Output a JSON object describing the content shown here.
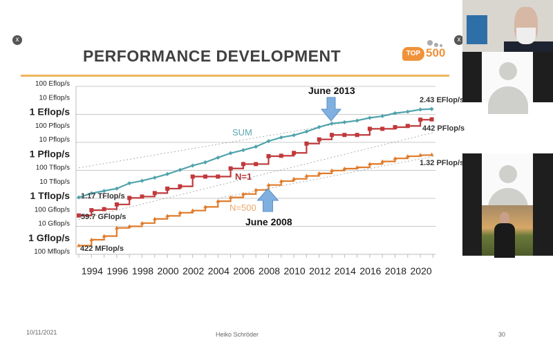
{
  "slide": {
    "title": "PERFORMANCE DEVELOPMENT",
    "logo_text": [
      "TOP",
      "500"
    ],
    "footer_date": "10/11/2021",
    "footer_author": "Heiko Schröder",
    "page_number": "30",
    "close_icon": "x"
  },
  "participants": {
    "tiles": [
      {
        "kind": "video",
        "description_icon": "speaker-video"
      },
      {
        "kind": "avatar",
        "description_icon": "person-placeholder-icon"
      },
      {
        "kind": "avatar",
        "description_icon": "person-placeholder-icon"
      },
      {
        "kind": "video",
        "description_icon": "profile-photo"
      }
    ]
  },
  "chart_data": {
    "type": "line",
    "title": "PERFORMANCE DEVELOPMENT",
    "xlabel": "",
    "ylabel": "",
    "y_scale": "log",
    "ylim": [
      "100 Mflop/s",
      "100 Eflop/s"
    ],
    "ylim_flops": [
      100000000.0,
      1e+20
    ],
    "xlim": [
      1993,
      2021
    ],
    "grid": true,
    "x_tick_labels": [
      "1994",
      "1996",
      "1998",
      "2000",
      "2002",
      "2004",
      "2006",
      "2008",
      "2010",
      "2012",
      "2014",
      "2016",
      "2018",
      "2020"
    ],
    "y_tick_labels": [
      {
        "label": "100 Eflop/s",
        "value": 1e+20,
        "major": false
      },
      {
        "label": "10 Eflop/s",
        "value": 1e+19,
        "major": false
      },
      {
        "label": "1 Eflop/s",
        "value": 1e+18,
        "major": true
      },
      {
        "label": "100 Pflop/s",
        "value": 1e+17,
        "major": false
      },
      {
        "label": "10 Pflop/s",
        "value": 1e+16,
        "major": false
      },
      {
        "label": "1 Pflop/s",
        "value": 1000000000000000.0,
        "major": true
      },
      {
        "label": "100 Tflop/s",
        "value": 100000000000000.0,
        "major": false
      },
      {
        "label": "10 Tflop/s",
        "value": 10000000000000.0,
        "major": false
      },
      {
        "label": "1 Tflop/s",
        "value": 1000000000000.0,
        "major": true
      },
      {
        "label": "100 Gflop/s",
        "value": 100000000000.0,
        "major": false
      },
      {
        "label": "10 Gflop/s",
        "value": 10000000000.0,
        "major": false
      },
      {
        "label": "1 Gflop/s",
        "value": 1000000000.0,
        "major": true
      },
      {
        "label": "100 Mflop/s",
        "value": 100000000.0,
        "major": false
      }
    ],
    "series": [
      {
        "name": "SUM",
        "color": "#4fa3ac",
        "marker": "diamond",
        "x": [
          1993,
          1994,
          1995,
          1996,
          1997,
          1998,
          1999,
          2000,
          2001,
          2002,
          2003,
          2004,
          2005,
          2006,
          2007,
          2008,
          2009,
          2010,
          2011,
          2012,
          2013,
          2014,
          2015,
          2016,
          2017,
          2018,
          2019,
          2020,
          2020.9
        ],
        "y": [
          1170000000000.0,
          2300000000000.0,
          3400000000000.0,
          5000000000000.0,
          12000000000000.0,
          18000000000000.0,
          30000000000000.0,
          54000000000000.0,
          108000000000000.0,
          220000000000000.0,
          375000000000000.0,
          813000000000000.0,
          1690000000000000.0,
          2790000000000000.0,
          4920000000000000.0,
          1.22e+16,
          2.26e+16,
          3.24e+16,
          5.89e+16,
          1.23e+17,
          2.23e+17,
          2.74e+17,
          3.61e+17,
          5.67e+17,
          7.49e+17,
          1.22e+18,
          1.56e+18,
          2.22e+18,
          2.43e+18
        ]
      },
      {
        "name": "N=1",
        "color": "#c0393b",
        "marker": "square",
        "x": [
          1993,
          1994,
          1995,
          1996,
          1997,
          1998,
          1999,
          2000,
          2001,
          2002,
          2003,
          2004,
          2005,
          2006,
          2007,
          2008,
          2009,
          2010,
          2011,
          2012,
          2013,
          2014,
          2015,
          2016,
          2017,
          2018,
          2019,
          2020,
          2020.9
        ],
        "y": [
          59700000000.0,
          143000000000.0,
          170000000000.0,
          368000000000.0,
          1070000000000.0,
          1340000000000.0,
          2380000000000.0,
          4940000000000.0,
          7230000000000.0,
          35900000000000.0,
          35900000000000.0,
          35900000000000.0,
          137000000000000.0,
          281000000000000.0,
          281000000000000.0,
          1030000000000000.0,
          1100000000000000.0,
          1760000000000000.0,
          8160000000000000.0,
          1.63e+16,
          3.39e+16,
          3.39e+16,
          3.39e+16,
          9.3e+16,
          9.3e+16,
          1.22e+17,
          1.49e+17,
          4.16e+17,
          4.42e+17
        ]
      },
      {
        "name": "N=500",
        "color": "#e07b2a",
        "marker": "triangle",
        "x": [
          1993,
          1994,
          1995,
          1996,
          1997,
          1998,
          1999,
          2000,
          2001,
          2002,
          2003,
          2004,
          2005,
          2006,
          2007,
          2008,
          2009,
          2010,
          2011,
          2012,
          2013,
          2014,
          2015,
          2016,
          2017,
          2018,
          2019,
          2020,
          2020.9
        ],
        "y": [
          422000000.0,
          1100000000.0,
          2000000000.0,
          7700000000.0,
          10000000000.0,
          17000000000.0,
          34000000000.0,
          56000000000.0,
          94000000000.0,
          134000000000.0,
          245000000000.0,
          624000000000.0,
          1170000000000.0,
          2030000000000.0,
          4000000000000.0,
          9000000000000.0,
          17000000000000.0,
          24700000000000.0,
          40000000000000.0,
          60800000000000.0,
          96600000000000.0,
          133000000000000.0,
          164000000000000.0,
          286000000000000.0,
          432000000000000.0,
          716000000000000.0,
          1020000000000000.0,
          1230000000000000.0,
          1320000000000000.0
        ]
      }
    ],
    "annotations": {
      "sum_label": "SUM",
      "n1_label": "N=1",
      "n500_label": "N=500",
      "june2013": {
        "text": "June 2013",
        "year": 2013,
        "arrow": "down"
      },
      "june2008": {
        "text": "June 2008",
        "year": 2008,
        "arrow": "up"
      },
      "start_sum": "1.17 TFlop/s",
      "start_n1": "59.7 GFlop/s",
      "start_n500": "422 MFlop/s",
      "end_sum": "2.43 EFlop/s",
      "end_n1": "442 PFlop/s",
      "end_n500": "1.32 PFlop/s"
    }
  }
}
